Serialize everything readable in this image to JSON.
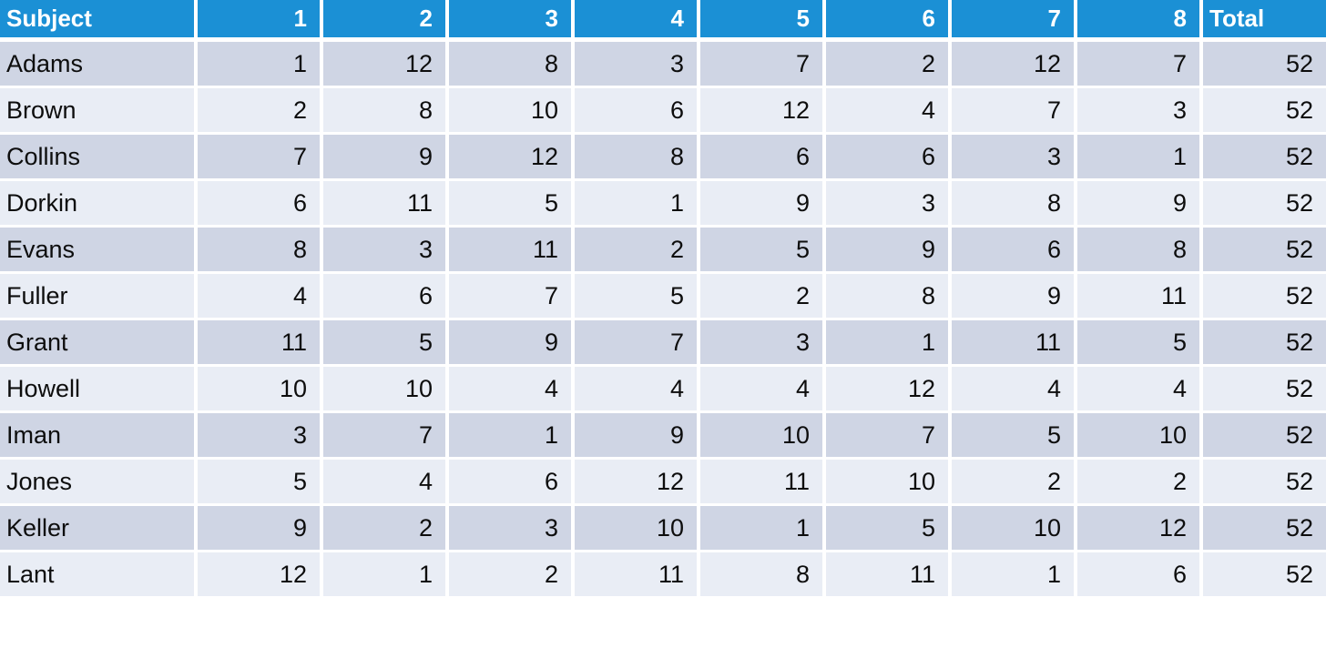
{
  "colors": {
    "header_bg": "#1b90d5",
    "header_text": "#ffffff",
    "row_dark": "#cfd5e4",
    "row_light": "#e9edf5",
    "grid": "#ffffff",
    "cell_text": "#0d0d0d",
    "page_bg": "#ffffff"
  },
  "chart_data": {
    "type": "table",
    "title": "",
    "columns": [
      "Subject",
      "1",
      "2",
      "3",
      "4",
      "5",
      "6",
      "7",
      "8",
      "Total"
    ],
    "rows": [
      {
        "subject": "Adams",
        "values": [
          1,
          12,
          8,
          3,
          7,
          2,
          12,
          7
        ],
        "total": 52
      },
      {
        "subject": "Brown",
        "values": [
          2,
          8,
          10,
          6,
          12,
          4,
          7,
          3
        ],
        "total": 52
      },
      {
        "subject": "Collins",
        "values": [
          7,
          9,
          12,
          8,
          6,
          6,
          3,
          1
        ],
        "total": 52
      },
      {
        "subject": "Dorkin",
        "values": [
          6,
          11,
          5,
          1,
          9,
          3,
          8,
          9
        ],
        "total": 52
      },
      {
        "subject": "Evans",
        "values": [
          8,
          3,
          11,
          2,
          5,
          9,
          6,
          8
        ],
        "total": 52
      },
      {
        "subject": "Fuller",
        "values": [
          4,
          6,
          7,
          5,
          2,
          8,
          9,
          11
        ],
        "total": 52
      },
      {
        "subject": "Grant",
        "values": [
          11,
          5,
          9,
          7,
          3,
          1,
          11,
          5
        ],
        "total": 52
      },
      {
        "subject": "Howell",
        "values": [
          10,
          10,
          4,
          4,
          4,
          12,
          4,
          4
        ],
        "total": 52
      },
      {
        "subject": "Iman",
        "values": [
          3,
          7,
          1,
          9,
          10,
          7,
          5,
          10
        ],
        "total": 52
      },
      {
        "subject": "Jones",
        "values": [
          5,
          4,
          6,
          12,
          11,
          10,
          2,
          2
        ],
        "total": 52
      },
      {
        "subject": "Keller",
        "values": [
          9,
          2,
          3,
          10,
          1,
          5,
          10,
          12
        ],
        "total": 52
      },
      {
        "subject": "Lant",
        "values": [
          12,
          1,
          2,
          11,
          8,
          11,
          1,
          6
        ],
        "total": 52
      }
    ]
  }
}
